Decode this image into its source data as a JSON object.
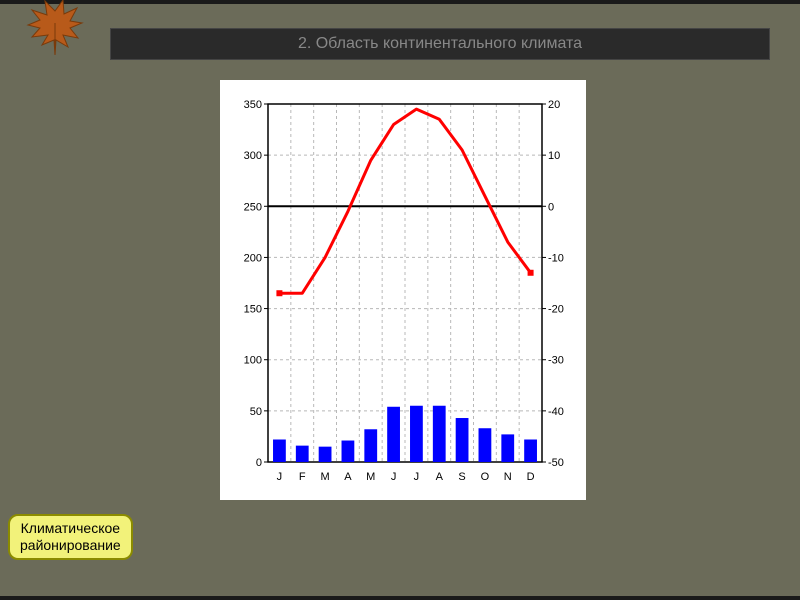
{
  "title": "2. Область континентального климата",
  "button_label_line1": "Климатическое",
  "button_label_line2": "районирование",
  "chart": {
    "type": "climate-diagram",
    "background_color": "#ffffff",
    "grid_color": "#b8b8b8",
    "zero_line_color": "#000000",
    "axis_color": "#000000",
    "tick_font_size": 11,
    "tick_color": "#000000",
    "left_axis": {
      "label": "",
      "min": 0,
      "max": 350,
      "ticks": [
        0,
        50,
        100,
        150,
        200,
        250,
        300,
        350
      ]
    },
    "right_axis": {
      "label": "",
      "min": -50,
      "max": 20,
      "ticks": [
        -50,
        -40,
        -30,
        -20,
        -10,
        0,
        10,
        20
      ]
    },
    "x_labels": [
      "J",
      "F",
      "M",
      "A",
      "M",
      "J",
      "J",
      "A",
      "S",
      "O",
      "N",
      "D"
    ],
    "bars": {
      "color": "#0000ff",
      "values": [
        22,
        16,
        15,
        21,
        32,
        54,
        55,
        55,
        43,
        33,
        27,
        22
      ]
    },
    "line": {
      "color": "#ff0000",
      "width": 3,
      "values_right_axis": [
        -17,
        -17,
        -10,
        -1,
        9,
        16,
        19,
        17,
        11,
        2,
        -7,
        -13
      ]
    }
  }
}
